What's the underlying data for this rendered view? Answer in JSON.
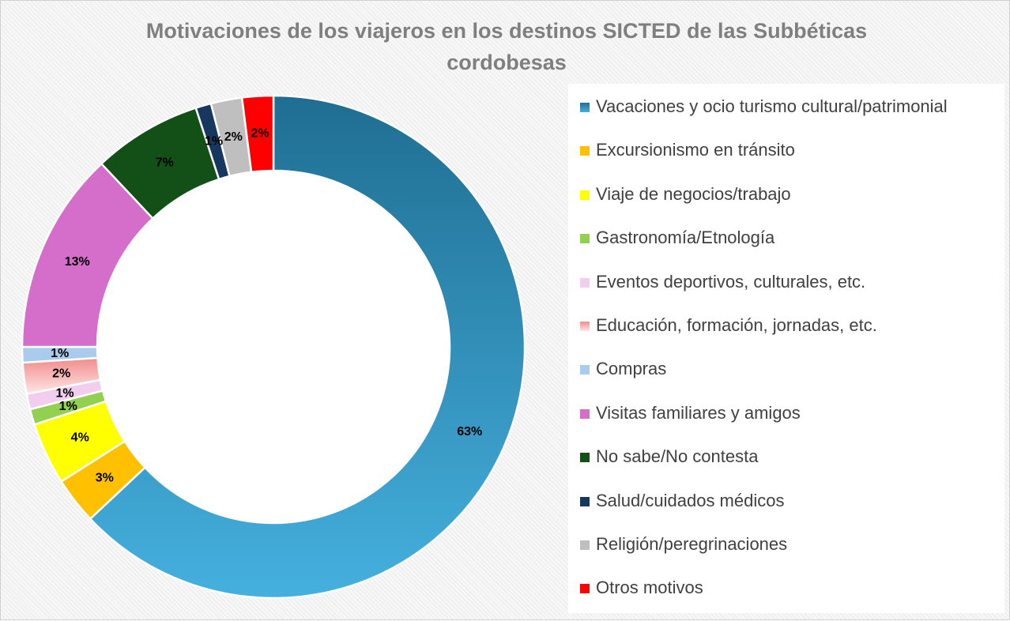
{
  "chart_data": {
    "type": "pie",
    "variant": "doughnut",
    "title": "Motivaciones de los viajeros en los destinos SICTED de las Subbéticas cordobesas",
    "title_lines": [
      "Motivaciones de los viajeros en los destinos SICTED de las Subbéticas",
      "cordobesas"
    ],
    "legend_position": "right",
    "slices": [
      {
        "label": "Vacaciones y ocio turismo cultural/patrimonial",
        "value": 63,
        "value_label": "63%",
        "color": "#1f6e92",
        "color2": "#45b0de"
      },
      {
        "label": "Excursionismo en tránsito",
        "value": 3,
        "value_label": "3%",
        "color": "#ffc000"
      },
      {
        "label": "Viaje de negocios/trabajo",
        "value": 4,
        "value_label": "4%",
        "color": "#ffff00"
      },
      {
        "label": "Gastronomía/Etnología",
        "value": 1,
        "value_label": "1%",
        "color": "#92d050"
      },
      {
        "label": "Eventos deportivos, culturales, etc.",
        "value": 1,
        "value_label": "1%",
        "color": "#f2cdee"
      },
      {
        "label": "Educación, formación, jornadas, etc.",
        "value": 2,
        "value_label": "2%",
        "color": "#f28b8b",
        "color2": "#fde6e6"
      },
      {
        "label": "Compras",
        "value": 1,
        "value_label": "1%",
        "color": "#a9cbec"
      },
      {
        "label": "Visitas familiares y amigos",
        "value": 13,
        "value_label": "13%",
        "color": "#d56ecb"
      },
      {
        "label": "No sabe/No contesta",
        "value": 7,
        "value_label": "7%",
        "color": "#125018"
      },
      {
        "label": "Salud/cuidados médicos",
        "value": 1,
        "value_label": "1%",
        "color": "#17375e"
      },
      {
        "label": "Religión/peregrinaciones",
        "value": 2,
        "value_label": "2%",
        "color": "#bfbfbf"
      },
      {
        "label": "Otros motivos",
        "value": 2,
        "value_label": "2%",
        "color": "#ff0000"
      }
    ]
  }
}
